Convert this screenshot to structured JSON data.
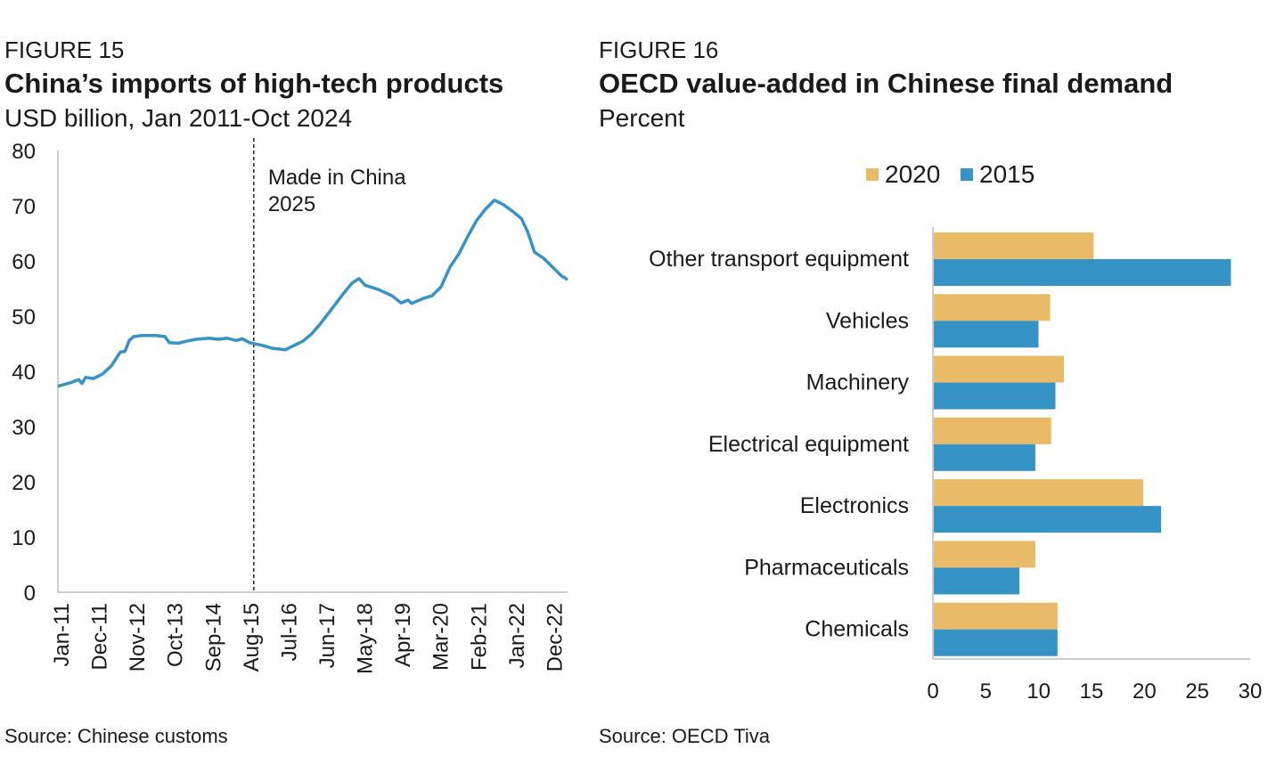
{
  "chart_data": [
    {
      "type": "line",
      "figure_label": "FIGURE 15",
      "title": "China’s imports of high-tech products",
      "subtitle": "USD billion, Jan 2011-Oct 2024",
      "source": "Source: Chinese customs",
      "xlabel": "",
      "ylabel": "",
      "ylim": [
        0,
        80
      ],
      "yticks": [
        0,
        10,
        20,
        30,
        40,
        50,
        60,
        70,
        80
      ],
      "xtick_labels": [
        "Jan-11",
        "Dec-11",
        "Nov-12",
        "Oct-13",
        "Sep-14",
        "Aug-15",
        "Jul-16",
        "Jun-17",
        "May-18",
        "Apr-19",
        "Mar-20",
        "Feb-21",
        "Jan-22",
        "Dec-22"
      ],
      "xtick_interval_months": 11,
      "x_max_index": 148,
      "annotation": {
        "line1": "Made in China",
        "line2": "2025",
        "x_index": 56.8
      },
      "color": "#3593C6",
      "series": [
        {
          "name": "High-tech imports",
          "points": [
            [
              0,
              37.3
            ],
            [
              3.9,
              38
            ],
            [
              6,
              38.5
            ],
            [
              7,
              37.8
            ],
            [
              8,
              38.9
            ],
            [
              10.3,
              38.7
            ],
            [
              12.9,
              39.5
            ],
            [
              15.5,
              41
            ],
            [
              18.1,
              43.5
            ],
            [
              19.4,
              43.6
            ],
            [
              20.7,
              45.6
            ],
            [
              22,
              46.3
            ],
            [
              24.5,
              46.5
            ],
            [
              28.4,
              46.5
            ],
            [
              31,
              46.3
            ],
            [
              32.3,
              45.2
            ],
            [
              34.9,
              45.1
            ],
            [
              37.5,
              45.5
            ],
            [
              40.1,
              45.8
            ],
            [
              43.9,
              46
            ],
            [
              46.5,
              45.8
            ],
            [
              49.1,
              46
            ],
            [
              51.7,
              45.6
            ],
            [
              53.5,
              45.9
            ],
            [
              55.6,
              45.2
            ],
            [
              59.4,
              44.7
            ],
            [
              62,
              44.2
            ],
            [
              65.9,
              43.9
            ],
            [
              68.5,
              44.7
            ],
            [
              71.1,
              45.5
            ],
            [
              73.6,
              46.8
            ],
            [
              76.2,
              48.7
            ],
            [
              78.8,
              50.8
            ],
            [
              82.7,
              54
            ],
            [
              85.3,
              56
            ],
            [
              87.3,
              56.8
            ],
            [
              89.1,
              55.6
            ],
            [
              93,
              54.8
            ],
            [
              96.9,
              53.7
            ],
            [
              99.5,
              52.4
            ],
            [
              101.5,
              52.9
            ],
            [
              102.6,
              52.3
            ],
            [
              105.9,
              53.2
            ],
            [
              108.5,
              53.7
            ],
            [
              111.1,
              55.3
            ],
            [
              113.7,
              58.9
            ],
            [
              116.3,
              61.3
            ],
            [
              118.9,
              64.5
            ],
            [
              121.4,
              67.3
            ],
            [
              124,
              69.4
            ],
            [
              126.6,
              71
            ],
            [
              129.2,
              70.2
            ],
            [
              131.8,
              69
            ],
            [
              134.4,
              67.7
            ],
            [
              136.2,
              65.3
            ],
            [
              138.2,
              61.6
            ],
            [
              140.8,
              60.5
            ],
            [
              143.4,
              58.9
            ],
            [
              146,
              57.3
            ],
            [
              147.8,
              56.6
            ]
          ]
        }
      ]
    },
    {
      "type": "bar",
      "orientation": "horizontal",
      "figure_label": "FIGURE 16",
      "title": "OECD value-added in Chinese final demand",
      "subtitle": "Percent",
      "source": "Source: OECD Tiva",
      "xlim": [
        0,
        30
      ],
      "xticks": [
        0,
        5,
        10,
        15,
        20,
        25,
        30
      ],
      "legend_placement": "top",
      "categories": [
        "Other transport equipment",
        "Vehicles",
        "Machinery",
        "Electrical equipment",
        "Electronics",
        "Pharmaceuticals",
        "Chemicals"
      ],
      "series": [
        {
          "name": "2020",
          "color": "#E9BB67",
          "values": [
            15.1,
            11.0,
            12.3,
            11.1,
            19.8,
            9.6,
            11.7
          ]
        },
        {
          "name": "2015",
          "color": "#3593C6",
          "values": [
            28.1,
            9.9,
            11.5,
            9.6,
            21.5,
            8.1,
            11.7
          ]
        }
      ]
    }
  ]
}
